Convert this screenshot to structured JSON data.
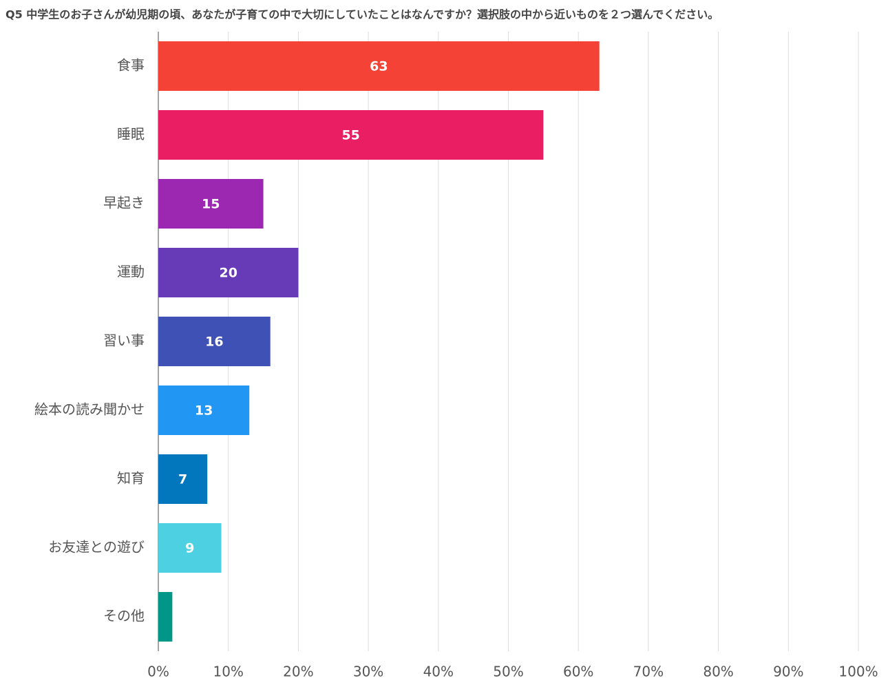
{
  "chart_data": {
    "type": "hbar",
    "title": "Q5 中学生のお子さんが幼児期の頃、あなたが子育ての中で大切にしていたことはなんですか？選択肢の中から近いものを２つ選んでください。",
    "categories": [
      "食事",
      "睡眠",
      "早起き",
      "運動",
      "習い事",
      "絵本の読み聞かせ",
      "知育",
      "お友達との遊び",
      "その他"
    ],
    "values": [
      63,
      55,
      15,
      20,
      16,
      13,
      7,
      9,
      2
    ],
    "value_labels": [
      "63",
      "55",
      "15",
      "20",
      "16",
      "13",
      "7",
      "9",
      null
    ],
    "colors": [
      "#f44336",
      "#e91e63",
      "#9c27b0",
      "#673ab7",
      "#3f51b5",
      "#2196f3",
      "#0277bd",
      "#4dd0e1",
      "#009688"
    ],
    "xlim": [
      0,
      100
    ],
    "xticks": [
      {
        "value": 0,
        "label": "0%"
      },
      {
        "value": 10,
        "label": "10%"
      },
      {
        "value": 20,
        "label": "20%"
      },
      {
        "value": 30,
        "label": "30%"
      },
      {
        "value": 40,
        "label": "40%"
      },
      {
        "value": 50,
        "label": "50%"
      },
      {
        "value": 60,
        "label": "60%"
      },
      {
        "value": 70,
        "label": "70%"
      },
      {
        "value": 80,
        "label": "80%"
      },
      {
        "value": 90,
        "label": "90%"
      },
      {
        "value": 100,
        "label": "100%"
      }
    ],
    "grid": true
  }
}
